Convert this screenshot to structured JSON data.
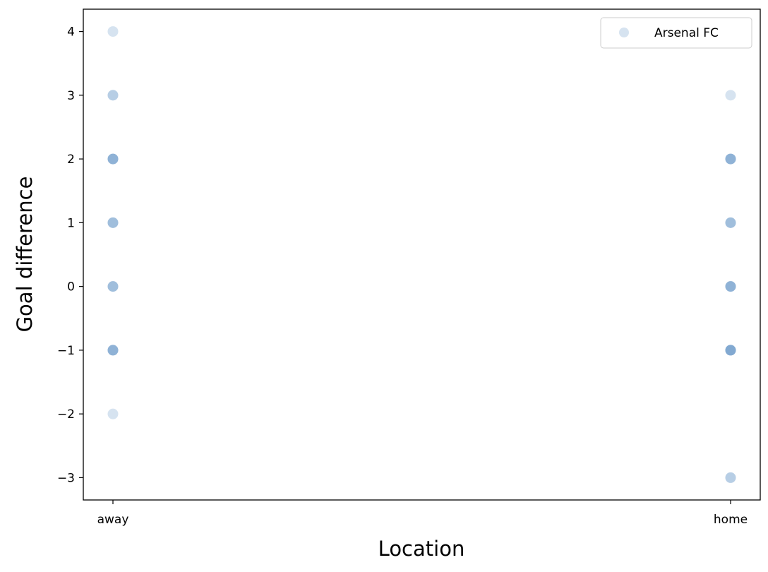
{
  "chart_data": {
    "type": "scatter",
    "title": "",
    "xlabel": "Location",
    "ylabel": "Goal difference",
    "categories": [
      "away",
      "home"
    ],
    "yticks": [
      "−3",
      "−2",
      "−1",
      "0",
      "1",
      "2",
      "3",
      "4"
    ],
    "ytick_values": [
      -3,
      -2,
      -1,
      0,
      1,
      2,
      3,
      4
    ],
    "ylim": [
      -3.35,
      4.35
    ],
    "grid": false,
    "legend_position": "top-right",
    "marker_color": "#5b8fc4",
    "marker_opacity": 0.25,
    "series": [
      {
        "name": "Arsenal FC",
        "points": [
          {
            "x": "away",
            "y": 4
          },
          {
            "x": "away",
            "y": 3
          },
          {
            "x": "away",
            "y": 3
          },
          {
            "x": "away",
            "y": 2
          },
          {
            "x": "away",
            "y": 2
          },
          {
            "x": "away",
            "y": 2
          },
          {
            "x": "away",
            "y": 2
          },
          {
            "x": "away",
            "y": 1
          },
          {
            "x": "away",
            "y": 1
          },
          {
            "x": "away",
            "y": 1
          },
          {
            "x": "away",
            "y": 0
          },
          {
            "x": "away",
            "y": 0
          },
          {
            "x": "away",
            "y": 0
          },
          {
            "x": "away",
            "y": -1
          },
          {
            "x": "away",
            "y": -1
          },
          {
            "x": "away",
            "y": -1
          },
          {
            "x": "away",
            "y": -1
          },
          {
            "x": "away",
            "y": -2
          },
          {
            "x": "home",
            "y": 3
          },
          {
            "x": "home",
            "y": 2
          },
          {
            "x": "home",
            "y": 2
          },
          {
            "x": "home",
            "y": 2
          },
          {
            "x": "home",
            "y": 2
          },
          {
            "x": "home",
            "y": 1
          },
          {
            "x": "home",
            "y": 1
          },
          {
            "x": "home",
            "y": 1
          },
          {
            "x": "home",
            "y": 0
          },
          {
            "x": "home",
            "y": 0
          },
          {
            "x": "home",
            "y": 0
          },
          {
            "x": "home",
            "y": 0
          },
          {
            "x": "home",
            "y": -1
          },
          {
            "x": "home",
            "y": -1
          },
          {
            "x": "home",
            "y": -1
          },
          {
            "x": "home",
            "y": -1
          },
          {
            "x": "home",
            "y": -1
          },
          {
            "x": "home",
            "y": -3
          },
          {
            "x": "home",
            "y": -3
          }
        ]
      }
    ]
  }
}
